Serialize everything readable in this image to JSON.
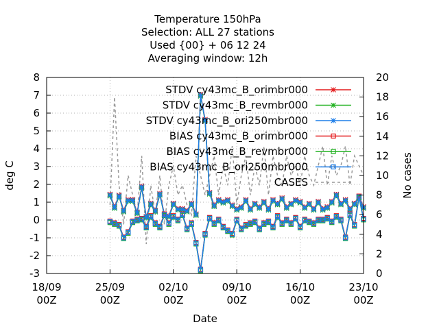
{
  "chart_data": {
    "type": "line",
    "title_lines": [
      "Temperature 150hPa",
      "Selection: ALL      27 stations",
      "Used {00} + 06 12 24",
      "Averaging window: 12h"
    ],
    "xlabel": "Date",
    "ylabel": "deg C",
    "y2label": "No cases",
    "xlim": [
      "2021-09-18 00Z",
      "2021-10-23 00Z"
    ],
    "ylim": [
      -3,
      8
    ],
    "y2lim": [
      0,
      20
    ],
    "x_ticks": [
      {
        "line1": "18/09",
        "line2": "00Z",
        "day": 0
      },
      {
        "line1": "25/09",
        "line2": "00Z",
        "day": 7
      },
      {
        "line1": "02/10",
        "line2": "00Z",
        "day": 14
      },
      {
        "line1": "09/10",
        "line2": "00Z",
        "day": 21
      },
      {
        "line1": "16/10",
        "line2": "00Z",
        "day": 28
      },
      {
        "line1": "23/10",
        "line2": "00Z",
        "day": 35
      }
    ],
    "y_ticks": [
      "-3",
      "-2",
      "-1",
      "0",
      "1",
      "2",
      "3",
      "4",
      "5",
      "6",
      "7",
      "8"
    ],
    "y2_ticks": [
      "0",
      "2",
      "4",
      "6",
      "8",
      "10",
      "12",
      "14",
      "16",
      "18",
      "20"
    ],
    "grid": true,
    "legend_position": "top-right",
    "legend": [
      {
        "label": "STDV cy43mc_B_orimbr000",
        "color": "#e41a1c",
        "marker": "x"
      },
      {
        "label": "STDV cy43mc_B_revmbr000",
        "color": "#22b222",
        "marker": "x"
      },
      {
        "label": "STDV cy43mc_B_ori250mbr000",
        "color": "#1e7ee8",
        "marker": "x"
      },
      {
        "label": "BIAS cy43mc_B_orimbr000",
        "color": "#e41a1c",
        "marker": "square"
      },
      {
        "label": "BIAS cy43mc_B_revmbr000",
        "color": "#22b222",
        "marker": "square"
      },
      {
        "label": "BIAS cy43mc_B_ori250mbr000",
        "color": "#1e7ee8",
        "marker": "square"
      },
      {
        "label": "CASES",
        "color": "#999999",
        "marker": "dashed"
      }
    ],
    "x_days": [
      7.0,
      7.5,
      8.0,
      8.5,
      9.0,
      9.5,
      10.0,
      10.5,
      11.0,
      11.5,
      12.0,
      12.5,
      13.0,
      13.5,
      14.0,
      14.5,
      15.0,
      15.5,
      16.0,
      16.5,
      17.0,
      17.5,
      18.0,
      18.5,
      19.0,
      19.5,
      20.0,
      20.5,
      21.0,
      21.5,
      22.0,
      22.5,
      23.0,
      23.5,
      24.0,
      24.5,
      25.0,
      25.5,
      26.0,
      26.5,
      27.0,
      27.5,
      28.0,
      28.5,
      29.0,
      29.5,
      30.0,
      30.5,
      31.0,
      31.5,
      32.0,
      32.5,
      33.0,
      33.5,
      34.0,
      34.5,
      35.0
    ],
    "series": [
      {
        "stat": "STDV",
        "values": [
          1.4,
          0.7,
          1.35,
          0.5,
          1.1,
          1.1,
          0.4,
          1.85,
          0.15,
          0.9,
          0.5,
          1.45,
          0.3,
          0.2,
          0.9,
          0.6,
          0.6,
          0.5,
          0.9,
          0.3,
          7.0,
          5.6,
          1.5,
          0.8,
          1.1,
          1.0,
          1.1,
          0.8,
          0.6,
          0.7,
          1.1,
          0.6,
          0.9,
          0.7,
          1.0,
          0.6,
          1.1,
          0.9,
          1.2,
          0.7,
          0.9,
          1.1,
          1.0,
          0.7,
          0.9,
          0.6,
          1.0,
          0.6,
          0.7,
          1.0,
          1.4,
          0.9,
          1.1,
          0.6,
          0.9,
          1.3,
          0.7
        ]
      },
      {
        "stat": "BIAS",
        "values": [
          -0.1,
          -0.2,
          -0.3,
          -1.0,
          -0.7,
          -0.1,
          0.0,
          0.05,
          -0.4,
          0.2,
          -0.2,
          -0.4,
          0.3,
          -0.2,
          0.2,
          0.0,
          0.3,
          -0.5,
          -0.2,
          -1.3,
          -2.8,
          -0.8,
          0.1,
          -0.2,
          0.0,
          -0.4,
          -0.6,
          -0.8,
          0.0,
          -0.5,
          -0.3,
          -0.2,
          -0.1,
          -0.5,
          -0.2,
          -0.1,
          -0.4,
          0.2,
          -0.2,
          0.0,
          -0.2,
          0.1,
          -0.4,
          0.0,
          -0.1,
          -0.2,
          0.0,
          0.0,
          0.1,
          -0.1,
          0.2,
          0.0,
          -1.0,
          0.3,
          -0.3,
          1.3,
          0.05
        ]
      },
      {
        "stat": "CASES",
        "values": [
          7,
          18,
          9,
          5,
          10,
          8,
          6,
          12,
          3,
          9,
          6,
          10,
          5,
          9,
          11,
          8,
          9,
          7,
          6,
          12,
          10,
          8,
          10,
          12,
          8,
          11,
          9,
          13,
          7,
          10,
          12,
          8,
          11,
          9,
          13,
          8,
          12,
          10,
          9,
          12,
          10,
          11,
          9,
          12,
          10,
          9,
          11,
          13,
          9,
          12,
          10,
          11,
          13,
          9,
          12,
          11,
          10
        ]
      }
    ]
  }
}
